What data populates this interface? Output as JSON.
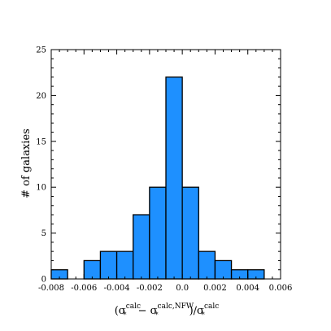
{
  "chart_data": {
    "type": "bar",
    "subtype": "histogram",
    "bin_edges": [
      -0.008,
      -0.007,
      -0.006,
      -0.005,
      -0.004,
      -0.003,
      -0.002,
      -0.001,
      0.0,
      0.001,
      0.002,
      0.003,
      0.004,
      0.005
    ],
    "counts": [
      1,
      0,
      2,
      3,
      3,
      7,
      10,
      22,
      10,
      3,
      2,
      1,
      1
    ],
    "xlim": [
      -0.008,
      0.006
    ],
    "ylim": [
      0,
      25
    ],
    "x_ticks": [
      -0.008,
      -0.006,
      -0.004,
      -0.002,
      0.0,
      0.002,
      0.004,
      0.006
    ],
    "x_tick_labels": [
      "-0.008",
      "-0.006",
      "-0.004",
      "-0.002",
      "0.0",
      "0.002",
      "0.004",
      "0.006"
    ],
    "y_ticks": [
      0,
      5,
      10,
      15,
      20,
      25
    ],
    "y_tick_labels": [
      "0",
      "5",
      "10",
      "15",
      "20",
      "25"
    ],
    "ylabel": "# of galaxies",
    "xlabel": {
      "open": "(σ",
      "sub1": "*",
      "sup1": "calc",
      "minus": " − σ",
      "sub2": "*",
      "sup2": "calc,NFW",
      "mid": ")/σ",
      "sub3": "*",
      "sup3": "calc"
    },
    "bar_color": "#1E90FF",
    "edge_color": "#000000",
    "grid": false
  }
}
